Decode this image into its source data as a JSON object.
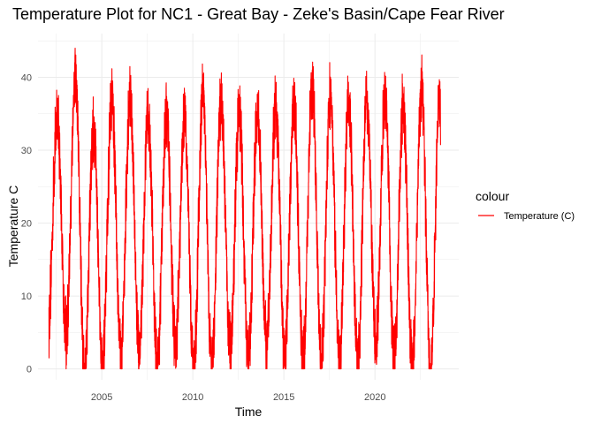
{
  "chart_data": {
    "type": "line",
    "title": "Temperature Plot for NC1 - Great Bay - Zeke's Basin/Cape Fear River",
    "xlabel": "Time",
    "ylabel": "Temperature C",
    "xlim": [
      2001.5,
      2024.6
    ],
    "ylim": [
      -1.5,
      46
    ],
    "x_ticks": [
      2005,
      2010,
      2015,
      2020
    ],
    "x_tick_labels": [
      "2005",
      "2010",
      "2015",
      "2020"
    ],
    "y_ticks": [
      0,
      10,
      20,
      30,
      40
    ],
    "y_tick_labels": [
      "0",
      "10",
      "20",
      "30",
      "40"
    ],
    "grid": true,
    "legend": {
      "title": "colour",
      "position": "right"
    },
    "series": [
      {
        "name": "Temperature (C)",
        "color": "#ff0000",
        "x_start": 2002.1,
        "x_end": 2023.6,
        "peaks": [
          {
            "year": 2002.55,
            "max": 34.5
          },
          {
            "year": 2003.55,
            "max": 39.8
          },
          {
            "year": 2004.55,
            "max": 33.0
          },
          {
            "year": 2005.55,
            "max": 36.5
          },
          {
            "year": 2006.55,
            "max": 36.8
          },
          {
            "year": 2007.55,
            "max": 34.2
          },
          {
            "year": 2008.55,
            "max": 35.0
          },
          {
            "year": 2009.55,
            "max": 34.5
          },
          {
            "year": 2010.55,
            "max": 37.3
          },
          {
            "year": 2011.55,
            "max": 36.5
          },
          {
            "year": 2012.55,
            "max": 35.2
          },
          {
            "year": 2013.55,
            "max": 35.5
          },
          {
            "year": 2014.55,
            "max": 36.0
          },
          {
            "year": 2015.55,
            "max": 36.3
          },
          {
            "year": 2016.55,
            "max": 38.7
          },
          {
            "year": 2017.55,
            "max": 37.5
          },
          {
            "year": 2018.55,
            "max": 37.0
          },
          {
            "year": 2019.55,
            "max": 37.3
          },
          {
            "year": 2020.55,
            "max": 37.4
          },
          {
            "year": 2021.55,
            "max": 36.0
          },
          {
            "year": 2022.55,
            "max": 38.3
          },
          {
            "year": 2023.55,
            "max": 36.0
          }
        ],
        "troughs": [
          {
            "year": 2002.05,
            "min": 5.6
          },
          {
            "year": 2003.05,
            "min": 4.6
          },
          {
            "year": 2004.05,
            "min": 0.1
          },
          {
            "year": 2005.05,
            "min": 0.0
          },
          {
            "year": 2006.05,
            "min": 2.0
          },
          {
            "year": 2007.05,
            "min": 2.8
          },
          {
            "year": 2008.05,
            "min": 0.0
          },
          {
            "year": 2009.05,
            "min": 3.0
          },
          {
            "year": 2010.05,
            "min": 0.0
          },
          {
            "year": 2011.05,
            "min": 0.0
          },
          {
            "year": 2012.05,
            "min": 2.5
          },
          {
            "year": 2013.05,
            "min": 1.0
          },
          {
            "year": 2014.05,
            "min": 3.5
          },
          {
            "year": 2015.05,
            "min": 2.0
          },
          {
            "year": 2016.05,
            "min": 1.0
          },
          {
            "year": 2017.05,
            "min": 1.5
          },
          {
            "year": 2018.05,
            "min": 0.0
          },
          {
            "year": 2019.05,
            "min": 0.8
          },
          {
            "year": 2020.05,
            "min": 3.5
          },
          {
            "year": 2021.05,
            "min": 1.5
          },
          {
            "year": 2022.05,
            "min": 0.0
          },
          {
            "year": 2023.05,
            "min": 0.0
          }
        ]
      }
    ]
  }
}
